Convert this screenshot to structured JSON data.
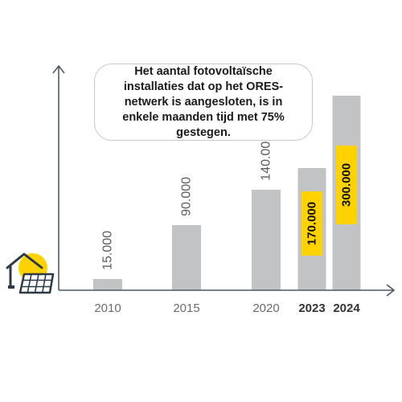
{
  "chart_data": {
    "type": "bar",
    "categories": [
      "2010",
      "2015",
      "2020",
      "2023",
      "2024"
    ],
    "values": [
      15000,
      90000,
      140000,
      170000,
      300000
    ],
    "value_labels": [
      "15.000",
      "90.000",
      "140.000",
      "170.000",
      "300.000"
    ],
    "highlighted": [
      false,
      false,
      false,
      true,
      true
    ],
    "bold_categories": [
      false,
      false,
      false,
      true,
      true
    ],
    "annotation": "Het aantal fotovoltaïsche installaties dat op het ORES-netwerk is aangesloten, is in enkele maanden tijd met 75% gestegen.",
    "colors": {
      "bar": "#c1c3c5",
      "axis": "#4f5a66",
      "highlight": "#ffd200",
      "label": "#5c5c5c",
      "icon": "#2e3a46",
      "icon_accent": "#ffd200"
    },
    "icon": "solar-house-icon"
  }
}
